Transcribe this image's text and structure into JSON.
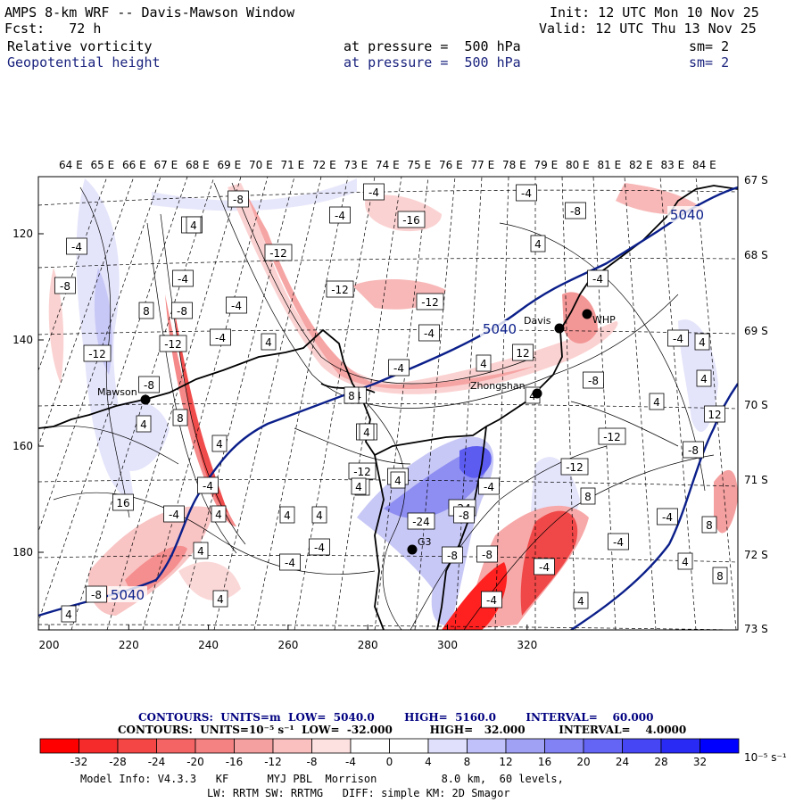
{
  "header": {
    "model_title": "AMPS 8-km WRF -- Davis-Mawson Window",
    "init": "Init: 12 UTC Mon 10 Nov 25",
    "fcst": "Fcst:   72 h",
    "valid": "Valid: 12 UTC Thu 13 Nov 25",
    "field1_name": "Relative vorticity",
    "field1_level": "at pressure =  500 hPa",
    "field1_sm": "sm= 2",
    "field2_name": "Geopotential height",
    "field2_level": "at pressure =  500 hPa",
    "field2_sm": "sm= 2"
  },
  "map": {
    "top_lon_labels": [
      "64 E",
      "65 E",
      "66 E",
      "67 E",
      "68 E",
      "69 E",
      "70 E",
      "71 E",
      "72 E",
      "73 E",
      "74 E",
      "75 E",
      "76 E",
      "77 E",
      "78 E",
      "79 E",
      "80 E",
      "81 E",
      "82 E",
      "83 E",
      "84 E"
    ],
    "right_lat_labels": [
      "67 S",
      "68 S",
      "69 S",
      "70 S",
      "71 S",
      "72 S",
      "73 S"
    ],
    "x_ticks": [
      "200",
      "220",
      "240",
      "260",
      "280",
      "300",
      "320"
    ],
    "y_ticks": [
      "120",
      "140",
      "160",
      "180"
    ],
    "stations": [
      {
        "name": "Mawson"
      },
      {
        "name": "Davis"
      },
      {
        "name": "WHP"
      },
      {
        "name": "Zhongshan"
      },
      {
        "name": "G3"
      }
    ],
    "height_labels": [
      "5040",
      "5040",
      "5040"
    ],
    "vort_labels": [
      "4",
      "-4",
      "-8",
      "-12",
      "-4",
      "-8",
      "-12",
      "-4",
      "-4",
      "-8",
      "8",
      "-12",
      "-8",
      "-4",
      "4",
      "4",
      "-4",
      "-4",
      "-16",
      "-12",
      "-12",
      "-4",
      "-4",
      "-4",
      "-8",
      "4",
      "-4",
      "4",
      "12",
      "4",
      "-8",
      "4",
      "4",
      "-4",
      "4",
      "12",
      "-12",
      "-8",
      "-12",
      "8",
      "-4",
      "8",
      "-4",
      "4",
      "8",
      "4",
      "4",
      "8",
      "4",
      "-8",
      "-12",
      "-4",
      "-4",
      "4",
      "4",
      "4",
      "16",
      "12",
      "-4",
      "-24",
      "-24",
      "-8",
      "-8",
      "-4",
      "-4",
      "-8",
      "4",
      "-4",
      "-4",
      "4",
      "-4",
      "8",
      "8",
      "4",
      "-8",
      "4",
      "4"
    ],
    "colors": {
      "height_contour": "#0b1f8a",
      "coast": "#000000"
    }
  },
  "colorbar": {
    "legend_line1": "CONTOURS:  UNITS=m  LOW=  5040.0        HIGH=  5160.0        INTERVAL=    60.000",
    "legend_line2": "CONTOURS:  UNITS=10⁻⁵ s⁻¹  LOW=  -32.000          HIGH=   32.000         INTERVAL=    4.0000",
    "tick_labels": [
      "-32",
      "-28",
      "-24",
      "-20",
      "-16",
      "-12",
      "-8",
      "-4",
      "0",
      "4",
      "8",
      "12",
      "16",
      "20",
      "24",
      "28",
      "32"
    ],
    "units_label": "10⁻⁵ s⁻¹",
    "colors": [
      "#ff0000",
      "#f52a2a",
      "#f54646",
      "#f56464",
      "#f58282",
      "#f5a0a0",
      "#fac0c0",
      "#fde0e0",
      "#ffffff",
      "#ffffff",
      "#e0e0fd",
      "#c0c0fa",
      "#a0a0f5",
      "#8282f5",
      "#6464f5",
      "#4646f5",
      "#2a2af5",
      "#0000ff"
    ]
  },
  "footer": {
    "line1": "Model Info: V4.3.3   KF      MYJ PBL  Morrison          8.0 km,  60 levels,",
    "line2": "LW: RRTM SW: RRTMG   DIFF: simple KM: 2D Smagor"
  }
}
